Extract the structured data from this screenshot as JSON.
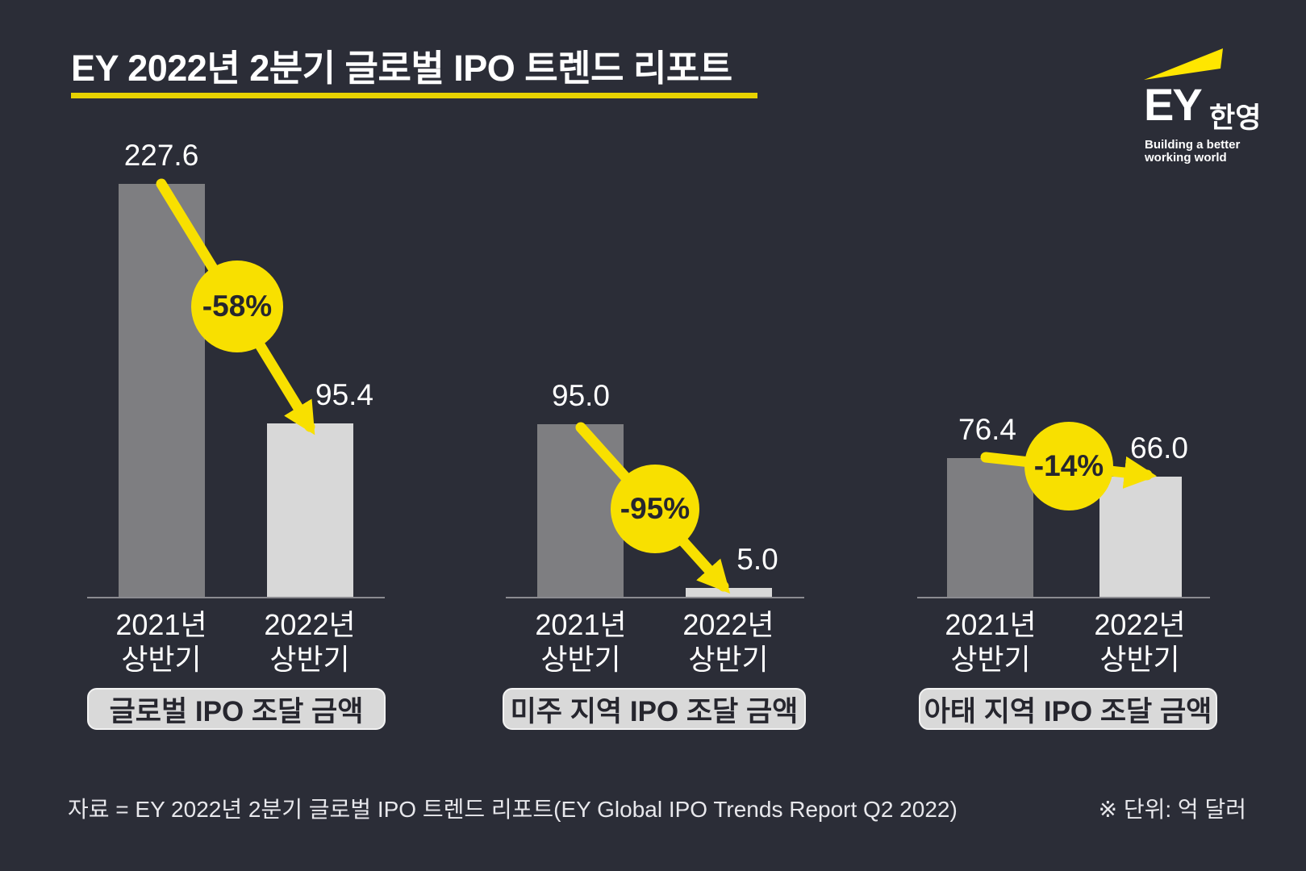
{
  "header": {
    "title": "EY 2022년 2분기 글로벌 IPO 트렌드 리포트"
  },
  "logo": {
    "ey": "EY",
    "korean_name": "한영",
    "tagline_line1": "Building a better",
    "tagline_line2": "working world"
  },
  "footer": {
    "source": "자료 = EY 2022년 2분기 글로벌 IPO 트렌드 리포트(EY Global IPO Trends Report Q2 2022)",
    "unit_note": "※ 단위: 억 달러"
  },
  "colors": {
    "background": "#2b2d37",
    "bar_2021": "#7e7e81",
    "bar_2022": "#d8d8d8",
    "accent_yellow": "#f8e000",
    "underline_yellow": "#e7d200",
    "beam_yellow": "#ffe600",
    "badge_text": "#26262e"
  },
  "chart_data": [
    {
      "type": "bar",
      "title": "글로벌 IPO 조달 금액",
      "categories": [
        "2021년 상반기",
        "2022년 상반기"
      ],
      "values": [
        227.6,
        95.4
      ],
      "value_labels": [
        "227.6",
        "95.4"
      ],
      "change_label": "-58%",
      "unit": "억 달러",
      "legend": "none",
      "grid": "off"
    },
    {
      "type": "bar",
      "title": "미주 지역 IPO 조달 금액",
      "categories": [
        "2021년 상반기",
        "2022년 상반기"
      ],
      "values": [
        95.0,
        5.0
      ],
      "value_labels": [
        "95.0",
        "5.0"
      ],
      "change_label": "-95%",
      "unit": "억 달러",
      "legend": "none",
      "grid": "off"
    },
    {
      "type": "bar",
      "title": "아태 지역 IPO 조달 금액",
      "categories": [
        "2021년 상반기",
        "2022년 상반기"
      ],
      "values": [
        76.4,
        66.0
      ],
      "value_labels": [
        "76.4",
        "66.0"
      ],
      "change_label": "-14%",
      "unit": "억 달러",
      "legend": "none",
      "grid": "off"
    }
  ]
}
